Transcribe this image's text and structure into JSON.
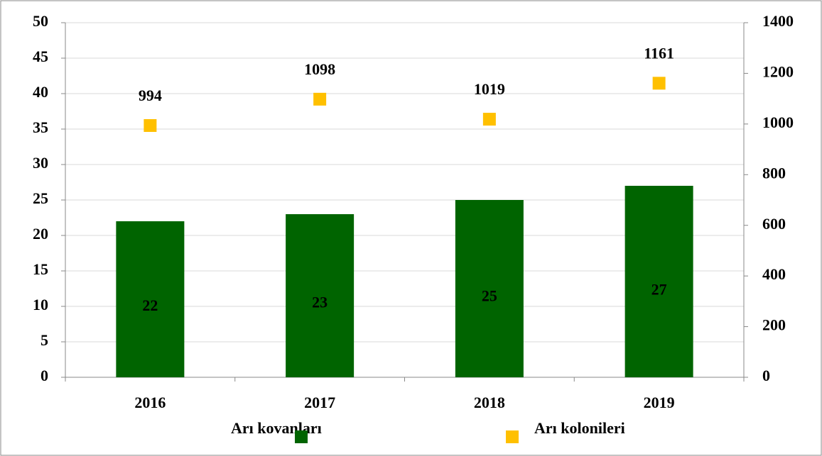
{
  "chart_data": {
    "type": "bar",
    "categories": [
      "2016",
      "2017",
      "2018",
      "2019"
    ],
    "series": [
      {
        "name": "Arı kovanları",
        "color": "#006400",
        "values": [
          22,
          23,
          25,
          27
        ]
      },
      {
        "name": "Arı kolonileri",
        "color": "#ffc000",
        "type": "scatter",
        "axis": "y2",
        "values": [
          994,
          1098,
          1019,
          1161
        ]
      }
    ],
    "ylim": [
      0,
      50
    ],
    "yticks": [
      0,
      5,
      10,
      15,
      20,
      25,
      30,
      35,
      40,
      45,
      50
    ],
    "y2lim": [
      0,
      1400
    ],
    "y2ticks": [
      0,
      200,
      400,
      600,
      800,
      1000,
      1200,
      1400
    ],
    "grid": true,
    "legend": "bottom"
  }
}
